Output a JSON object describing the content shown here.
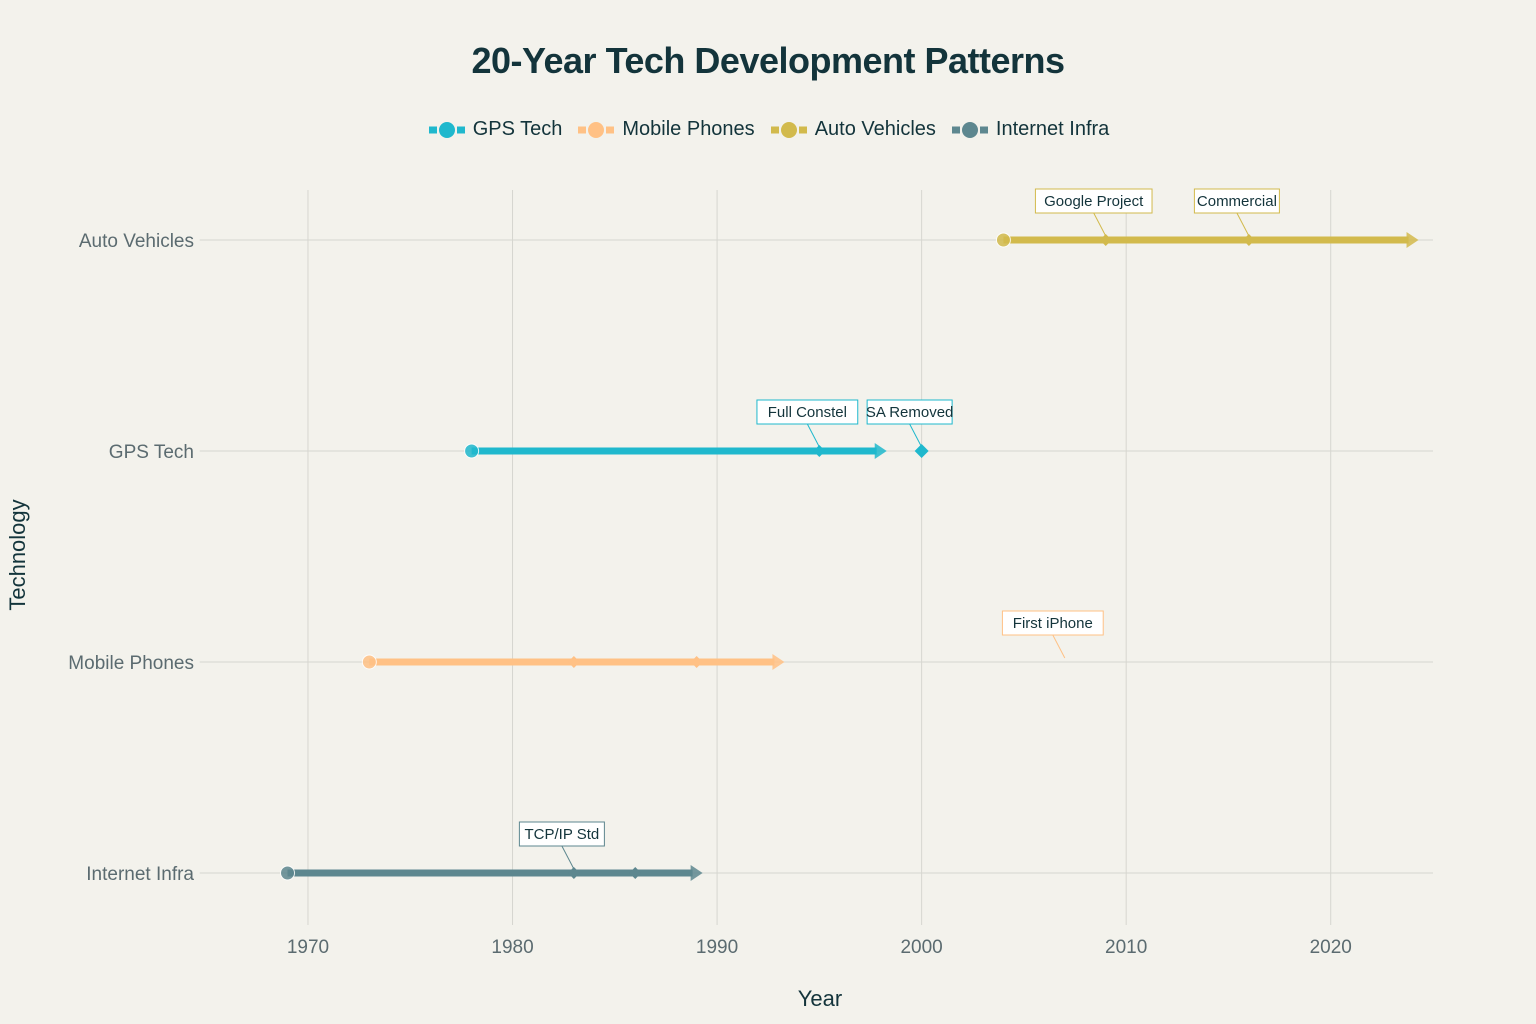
{
  "chart_data": {
    "type": "timeline",
    "title": "20-Year Tech Development Patterns",
    "xlabel": "Year",
    "ylabel": "Technology",
    "xlim": [
      1965,
      2025
    ],
    "xticks": [
      1970,
      1980,
      1990,
      2000,
      2010,
      2020
    ],
    "categories": [
      "Auto Vehicles",
      "GPS Tech",
      "Mobile Phones",
      "Internet Infra"
    ],
    "grid": true,
    "legend_position": "top-center",
    "legend": [
      "GPS Tech",
      "Mobile Phones",
      "Auto Vehicles",
      "Internet Infra"
    ],
    "series": [
      {
        "name": "GPS Tech",
        "color": "#1FB8CD",
        "start": 1978,
        "end": 1998,
        "milestones": [
          1995
        ],
        "extra_points": [
          2000
        ],
        "annotations": [
          {
            "text": "Full Constel",
            "year": 1995
          },
          {
            "text": "SA Removed",
            "year": 2000
          }
        ]
      },
      {
        "name": "Mobile Phones",
        "color": "#FFC185",
        "start": 1973,
        "end": 1993,
        "milestones": [
          1983,
          1989
        ],
        "extra_points": [],
        "annotations": [
          {
            "text": "First iPhone",
            "year": 2007
          }
        ]
      },
      {
        "name": "Auto Vehicles",
        "color": "#D2BA4C",
        "start": 2004,
        "end": 2024,
        "milestones": [
          2009,
          2016
        ],
        "extra_points": [],
        "annotations": [
          {
            "text": "Google Project",
            "year": 2009
          },
          {
            "text": "Commercial",
            "year": 2016
          }
        ]
      },
      {
        "name": "Internet Infra",
        "color": "#5D878F",
        "start": 1969,
        "end": 1989,
        "milestones": [
          1983,
          1986
        ],
        "extra_points": [],
        "annotations": [
          {
            "text": "TCP/IP Std",
            "year": 1983
          }
        ]
      }
    ]
  }
}
